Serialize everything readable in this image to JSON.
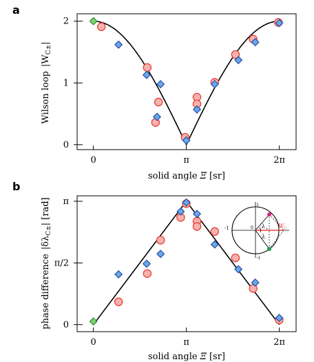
{
  "chart_data": [
    {
      "panel": "a",
      "type": "scatter",
      "xlabel": "solid angle Ξ [sr]",
      "ylabel": "Wilson loop  |W_C±|",
      "xticks": [
        {
          "v": 0,
          "label": "0"
        },
        {
          "v": 3.14159,
          "label": "π"
        },
        {
          "v": 6.28318,
          "label": "2π"
        }
      ],
      "yticks": [
        {
          "v": 0,
          "label": "0"
        },
        {
          "v": 1,
          "label": "1"
        },
        {
          "v": 2,
          "label": "2"
        }
      ],
      "xlim": [
        -0.55,
        6.85
      ],
      "ylim": [
        -0.08,
        2.12
      ],
      "theory_curve": "2|cos(x/2)|",
      "series": [
        {
          "marker": "circle",
          "color": "#e8403a",
          "fill": "#f6b3ae",
          "x": [
            0.27,
            1.82,
            2.2,
            2.1,
            3.1,
            3.5,
            3.5,
            4.1,
            4.8,
            5.4,
            6.25
          ],
          "y": [
            1.91,
            1.25,
            0.69,
            0.36,
            0.12,
            0.77,
            0.66,
            1.01,
            1.46,
            1.71,
            1.98
          ]
        },
        {
          "marker": "diamond",
          "color": "#1f4fa3",
          "fill": "#6ea7e8",
          "x": [
            0.85,
            1.8,
            2.27,
            2.15,
            3.14,
            3.5,
            4.1,
            4.9,
            5.47,
            6.28
          ],
          "y": [
            1.62,
            1.13,
            0.98,
            0.45,
            0.07,
            0.57,
            0.98,
            1.37,
            1.66,
            1.97
          ]
        },
        {
          "marker": "diamond",
          "color": "#2f8a2f",
          "fill": "#7dd56a",
          "x": [
            0.0
          ],
          "y": [
            2.0
          ]
        }
      ]
    },
    {
      "panel": "b",
      "type": "scatter",
      "xlabel": "solid angle Ξ [sr]",
      "ylabel": "phase difference  |δλ_C±| [rad]",
      "xticks": [
        {
          "v": 0,
          "label": "0"
        },
        {
          "v": 3.14159,
          "label": "π"
        },
        {
          "v": 6.28318,
          "label": "2π"
        }
      ],
      "yticks": [
        {
          "v": 0,
          "label": "0"
        },
        {
          "v": 1.5708,
          "label": "π/2"
        },
        {
          "v": 3.14159,
          "label": "π"
        }
      ],
      "xlim": [
        -0.55,
        6.85
      ],
      "ylim": [
        -0.18,
        3.28
      ],
      "theory_curve": "triangle",
      "series": [
        {
          "marker": "circle",
          "color": "#e8403a",
          "fill": "#f6b3ae",
          "x": [
            0.85,
            1.82,
            2.27,
            2.95,
            3.14,
            3.5,
            3.5,
            4.1,
            4.8,
            5.4,
            6.28
          ],
          "y": [
            0.58,
            1.3,
            2.15,
            2.73,
            3.08,
            2.63,
            2.5,
            2.37,
            1.7,
            0.92,
            0.12
          ]
        },
        {
          "marker": "diamond",
          "color": "#1f4fa3",
          "fill": "#6ea7e8",
          "x": [
            0.85,
            1.8,
            2.27,
            2.95,
            3.14,
            3.5,
            4.1,
            4.9,
            5.47,
            6.28
          ],
          "y": [
            1.28,
            1.55,
            1.8,
            2.88,
            3.11,
            2.82,
            2.04,
            1.41,
            1.07,
            0.17
          ]
        },
        {
          "marker": "diamond",
          "color": "#2f8a2f",
          "fill": "#7dd56a",
          "x": [
            0.0
          ],
          "y": [
            0.08
          ]
        }
      ]
    }
  ],
  "panels": {
    "a": {
      "letter": "a",
      "xlabel_main": "solid angle ",
      "xlabel_sym": "Ξ",
      "xlabel_unit": " [sr]",
      "ylabel_main": "Wilson loop",
      "ylabel_sym": "|W",
      "ylabel_sub": "C±",
      "ylabel_end": "|"
    },
    "b": {
      "letter": "b",
      "xlabel_main": "solid angle ",
      "xlabel_sym": "Ξ",
      "xlabel_unit": " [sr]",
      "ylabel_main": "phase difference",
      "ylabel_sym": "|δλ",
      "ylabel_sub": "C±",
      "ylabel_end": "| [rad]"
    }
  },
  "inset": {
    "i_top": "i",
    "i_bottom": "-i",
    "minus_one": "-1",
    "zero": "0",
    "lambda_plus": "λ",
    "lambda_minus": "λ",
    "sub_plus": "+",
    "sub_minus": "-",
    "wc_label": "W",
    "wc_sub": "C"
  }
}
